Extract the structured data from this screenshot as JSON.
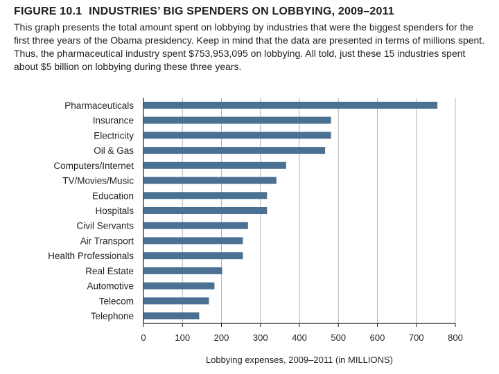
{
  "figure": {
    "label": "FIGURE 10.1",
    "title": "INDUSTRIES’ BIG SPENDERS ON LOBBYING, 2009–2011",
    "caption": "This graph presents the total amount spent on lobbying by industries that were the biggest spenders for the first three years of the Obama presidency. Keep in mind that the data are presented in terms of millions spent. Thus, the pharmaceutical industry spent $753,953,095 on lobbying. All told, just these 15 industries spent about $5 billion on lobbying during these three years."
  },
  "chart_data": {
    "type": "bar",
    "orientation": "horizontal",
    "title": "INDUSTRIES’ BIG SPENDERS ON LOBBYING, 2009–2011",
    "categories": [
      "Pharmaceuticals",
      "Insurance",
      "Electricity",
      "Oil & Gas",
      "Computers/Internet",
      "TV/Movies/Music",
      "Education",
      "Hospitals",
      "Civil Servants",
      "Air Transport",
      "Health Professionals",
      "Real Estate",
      "Automotive",
      "Telecom",
      "Telephone"
    ],
    "values": [
      754,
      481,
      481,
      466,
      366,
      341,
      317,
      317,
      268,
      255,
      255,
      202,
      182,
      168,
      143
    ],
    "xlabel": "Lobbying expenses, 2009–2011 (in MILLIONS)",
    "ylabel": "",
    "xlim": [
      0,
      800
    ],
    "xticks": [
      0,
      100,
      200,
      300,
      400,
      500,
      600,
      700,
      800
    ],
    "grid": true,
    "bar_color": "#4a7194",
    "grid_color": "#b4b4b4"
  }
}
